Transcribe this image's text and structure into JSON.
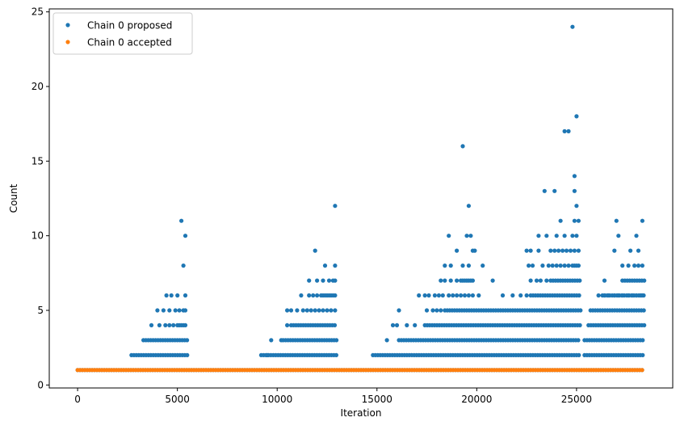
{
  "chart_data": {
    "type": "scatter",
    "xlabel": "Iteration",
    "ylabel": "Count",
    "xlim": [
      -1420,
      29820
    ],
    "ylim": [
      -0.2,
      25.2
    ],
    "xticks": [
      0,
      5000,
      10000,
      15000,
      20000,
      25000
    ],
    "yticks": [
      0,
      5,
      10,
      15,
      20,
      25
    ],
    "legend_placement": "top-left",
    "grid": false,
    "series": [
      {
        "name": "Chain 0 proposed",
        "color": "#1f77b4",
        "bands": [
          {
            "y": 1,
            "x": [
              0,
              28400
            ]
          },
          {
            "y": 2,
            "x": [
              2700,
              5500
            ]
          },
          {
            "y": 2,
            "x": [
              9200,
              13000
            ]
          },
          {
            "y": 2,
            "x": [
              14800,
              25200
            ]
          },
          {
            "y": 2,
            "x": [
              25400,
              28400
            ]
          },
          {
            "y": 3,
            "x": [
              3300,
              5500
            ]
          },
          {
            "y": 3,
            "x": [
              10300,
              13000
            ]
          },
          {
            "y": 3,
            "x": [
              16100,
              25200
            ]
          },
          {
            "y": 3,
            "x": [
              25400,
              28400
            ]
          },
          {
            "y": 4,
            "x": [
              10700,
              13000
            ]
          },
          {
            "y": 4,
            "x": [
              17400,
              25200
            ]
          },
          {
            "y": 4,
            "x": [
              25600,
              28400
            ]
          },
          {
            "y": 5,
            "x": [
              18400,
              25200
            ]
          },
          {
            "y": 5,
            "x": [
              25700,
              28400
            ]
          },
          {
            "y": 6,
            "x": [
              22700,
              25200
            ]
          },
          {
            "y": 6,
            "x": [
              26300,
              28400
            ]
          },
          {
            "y": 7,
            "x": [
              23700,
              25200
            ]
          },
          {
            "y": 7,
            "x": [
              27300,
              28400
            ]
          }
        ],
        "points": [
          [
            3700,
            4
          ],
          [
            4100,
            4
          ],
          [
            4400,
            4
          ],
          [
            4600,
            4
          ],
          [
            4800,
            4
          ],
          [
            5000,
            4
          ],
          [
            5100,
            4
          ],
          [
            5200,
            4
          ],
          [
            5300,
            4
          ],
          [
            5400,
            4
          ],
          [
            4000,
            5
          ],
          [
            4300,
            5
          ],
          [
            4600,
            5
          ],
          [
            4900,
            5
          ],
          [
            5100,
            5
          ],
          [
            5300,
            5
          ],
          [
            5400,
            5
          ],
          [
            4450,
            6
          ],
          [
            4700,
            6
          ],
          [
            5000,
            6
          ],
          [
            5400,
            6
          ],
          [
            5200,
            11
          ],
          [
            5400,
            10
          ],
          [
            5300,
            8
          ],
          [
            9500,
            2
          ],
          [
            9700,
            3
          ],
          [
            10200,
            3
          ],
          [
            10500,
            4
          ],
          [
            10500,
            5
          ],
          [
            10700,
            5
          ],
          [
            11000,
            5
          ],
          [
            11300,
            5
          ],
          [
            11500,
            5
          ],
          [
            11700,
            5
          ],
          [
            11900,
            5
          ],
          [
            12100,
            5
          ],
          [
            12300,
            5
          ],
          [
            12500,
            5
          ],
          [
            12700,
            5
          ],
          [
            12900,
            5
          ],
          [
            11200,
            6
          ],
          [
            11600,
            6
          ],
          [
            11800,
            6
          ],
          [
            12000,
            6
          ],
          [
            12200,
            6
          ],
          [
            12300,
            6
          ],
          [
            12400,
            6
          ],
          [
            12500,
            6
          ],
          [
            12600,
            6
          ],
          [
            12700,
            6
          ],
          [
            12800,
            6
          ],
          [
            12900,
            6
          ],
          [
            11600,
            7
          ],
          [
            12000,
            7
          ],
          [
            12300,
            7
          ],
          [
            12600,
            7
          ],
          [
            12800,
            7
          ],
          [
            12900,
            7
          ],
          [
            12400,
            8
          ],
          [
            12900,
            8
          ],
          [
            11900,
            9
          ],
          [
            12900,
            12
          ],
          [
            15500,
            3
          ],
          [
            16000,
            4
          ],
          [
            16500,
            4
          ],
          [
            16900,
            4
          ],
          [
            15800,
            4
          ],
          [
            16100,
            5
          ],
          [
            17500,
            5
          ],
          [
            17800,
            5
          ],
          [
            18000,
            5
          ],
          [
            18200,
            5
          ],
          [
            17100,
            6
          ],
          [
            17400,
            6
          ],
          [
            17600,
            6
          ],
          [
            17900,
            6
          ],
          [
            18100,
            6
          ],
          [
            18300,
            6
          ],
          [
            18600,
            6
          ],
          [
            18800,
            6
          ],
          [
            19000,
            6
          ],
          [
            19200,
            6
          ],
          [
            19400,
            6
          ],
          [
            19600,
            6
          ],
          [
            19800,
            6
          ],
          [
            20100,
            6
          ],
          [
            21300,
            6
          ],
          [
            21800,
            6
          ],
          [
            22200,
            6
          ],
          [
            22500,
            6
          ],
          [
            18200,
            7
          ],
          [
            18400,
            7
          ],
          [
            18700,
            7
          ],
          [
            19000,
            7
          ],
          [
            19200,
            7
          ],
          [
            19300,
            7
          ],
          [
            19400,
            7
          ],
          [
            19500,
            7
          ],
          [
            19600,
            7
          ],
          [
            19700,
            7
          ],
          [
            19800,
            7
          ],
          [
            20800,
            7
          ],
          [
            22700,
            7
          ],
          [
            23000,
            7
          ],
          [
            23200,
            7
          ],
          [
            23500,
            7
          ],
          [
            18400,
            8
          ],
          [
            18700,
            8
          ],
          [
            19300,
            8
          ],
          [
            19600,
            8
          ],
          [
            20300,
            8
          ],
          [
            22600,
            8
          ],
          [
            22800,
            8
          ],
          [
            23300,
            8
          ],
          [
            23600,
            8
          ],
          [
            23800,
            8
          ],
          [
            24000,
            8
          ],
          [
            24200,
            8
          ],
          [
            24400,
            8
          ],
          [
            24600,
            8
          ],
          [
            24800,
            8
          ],
          [
            24900,
            8
          ],
          [
            25000,
            8
          ],
          [
            25100,
            8
          ],
          [
            19000,
            9
          ],
          [
            19800,
            9
          ],
          [
            19900,
            9
          ],
          [
            22500,
            9
          ],
          [
            22700,
            9
          ],
          [
            23100,
            9
          ],
          [
            23700,
            9
          ],
          [
            23900,
            9
          ],
          [
            24100,
            9
          ],
          [
            24300,
            9
          ],
          [
            24500,
            9
          ],
          [
            24700,
            9
          ],
          [
            24900,
            9
          ],
          [
            25100,
            9
          ],
          [
            18600,
            10
          ],
          [
            19500,
            10
          ],
          [
            19700,
            10
          ],
          [
            23100,
            10
          ],
          [
            23500,
            10
          ],
          [
            24000,
            10
          ],
          [
            24400,
            10
          ],
          [
            24800,
            10
          ],
          [
            25000,
            10
          ],
          [
            24200,
            11
          ],
          [
            24900,
            11
          ],
          [
            25100,
            11
          ],
          [
            19600,
            12
          ],
          [
            25000,
            12
          ],
          [
            23400,
            13
          ],
          [
            23900,
            13
          ],
          [
            24900,
            13
          ],
          [
            24900,
            14
          ],
          [
            19300,
            16
          ],
          [
            24400,
            17
          ],
          [
            24600,
            17
          ],
          [
            25000,
            18
          ],
          [
            24800,
            24
          ],
          [
            26100,
            6
          ],
          [
            26400,
            6
          ],
          [
            26600,
            6
          ],
          [
            26900,
            6
          ],
          [
            27100,
            6
          ],
          [
            27300,
            6
          ],
          [
            27600,
            6
          ],
          [
            27800,
            6
          ],
          [
            28000,
            6
          ],
          [
            28200,
            6
          ],
          [
            28300,
            6
          ],
          [
            26400,
            7
          ],
          [
            27300,
            8
          ],
          [
            27600,
            8
          ],
          [
            27900,
            8
          ],
          [
            28100,
            8
          ],
          [
            28300,
            8
          ],
          [
            26900,
            9
          ],
          [
            27700,
            9
          ],
          [
            28100,
            9
          ],
          [
            27100,
            10
          ],
          [
            28000,
            10
          ],
          [
            27000,
            11
          ],
          [
            28300,
            11
          ]
        ]
      },
      {
        "name": "Chain 0 accepted",
        "color": "#ff7f0e",
        "bands": [
          {
            "y": 1,
            "x": [
              0,
              28400
            ]
          }
        ],
        "points": []
      }
    ]
  }
}
